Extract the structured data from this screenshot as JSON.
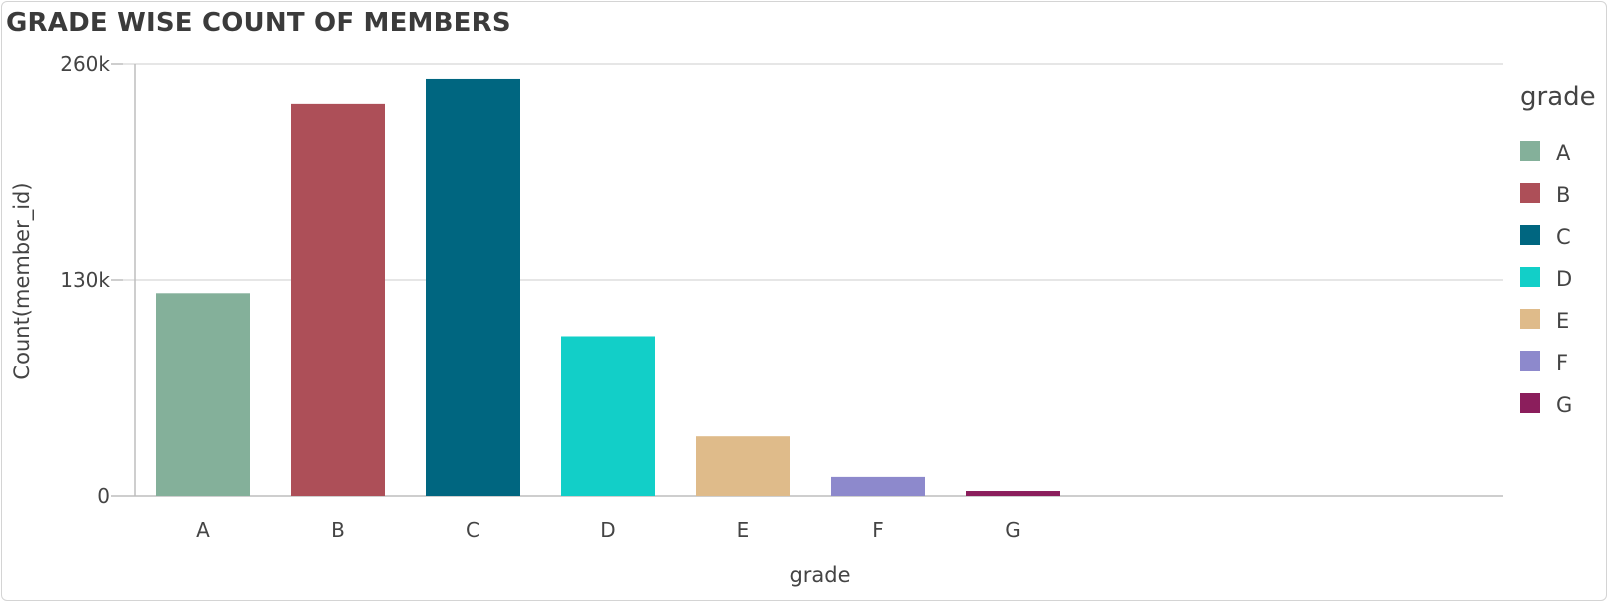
{
  "chart_data": {
    "type": "bar",
    "title": "GRADE WISE COUNT OF MEMBERS",
    "xlabel": "grade",
    "ylabel": "Count(member_id)",
    "categories": [
      "A",
      "B",
      "C",
      "D",
      "E",
      "F",
      "G"
    ],
    "values": [
      122000,
      236000,
      251000,
      96000,
      36000,
      11500,
      3000
    ],
    "ylim": [
      0,
      260000
    ],
    "yticks": [
      0,
      130000,
      260000
    ],
    "ytick_labels": [
      "0",
      "130k",
      "260k"
    ],
    "grid": true,
    "legend": {
      "title": "grade",
      "placement": "right",
      "entries": [
        "A",
        "B",
        "C",
        "D",
        "E",
        "F",
        "G"
      ]
    },
    "colors": [
      "#84b09a",
      "#ad4f58",
      "#006680",
      "#12cfc8",
      "#dfbb8a",
      "#8d89cc",
      "#8b1e5c"
    ]
  }
}
